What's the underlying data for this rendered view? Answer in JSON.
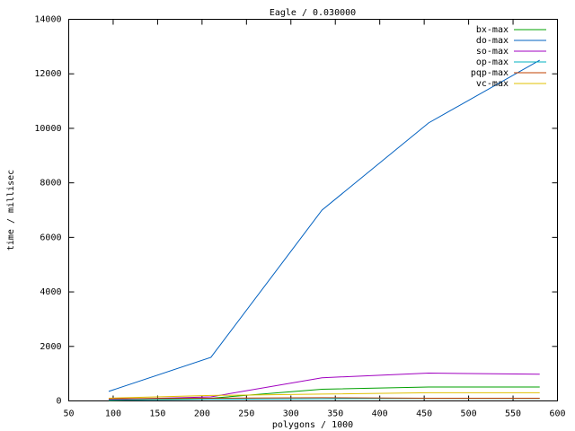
{
  "chart_data": {
    "type": "line",
    "title": "Eagle / 0.030000",
    "x_label": "polygons / 1000",
    "y_label": "time / millisec",
    "xlim": [
      50,
      600
    ],
    "xticks": [
      50,
      100,
      150,
      200,
      250,
      300,
      350,
      400,
      450,
      500,
      550,
      600
    ],
    "ylim": [
      0,
      14000
    ],
    "yticks": [
      0,
      2000,
      4000,
      6000,
      8000,
      10000,
      12000,
      14000
    ],
    "legend": "top-right",
    "x": [
      95,
      210,
      335,
      455,
      580
    ],
    "series": [
      {
        "name": "bx-max",
        "color": "#00a000",
        "values": [
          20,
          100,
          430,
          510,
          510
        ]
      },
      {
        "name": "do-max",
        "color": "#0060c0",
        "values": [
          350,
          1600,
          7000,
          10200,
          12500
        ]
      },
      {
        "name": "so-max",
        "color": "#a000c0",
        "values": [
          50,
          150,
          850,
          1020,
          980
        ]
      },
      {
        "name": "op-max",
        "color": "#00b0c0",
        "values": [
          30,
          60,
          80,
          90,
          90
        ]
      },
      {
        "name": "pqp-max",
        "color": "#c04000",
        "values": [
          80,
          100,
          120,
          100,
          100
        ]
      },
      {
        "name": "vc-max",
        "color": "#e0c000",
        "values": [
          100,
          200,
          250,
          300,
          300
        ]
      }
    ]
  }
}
